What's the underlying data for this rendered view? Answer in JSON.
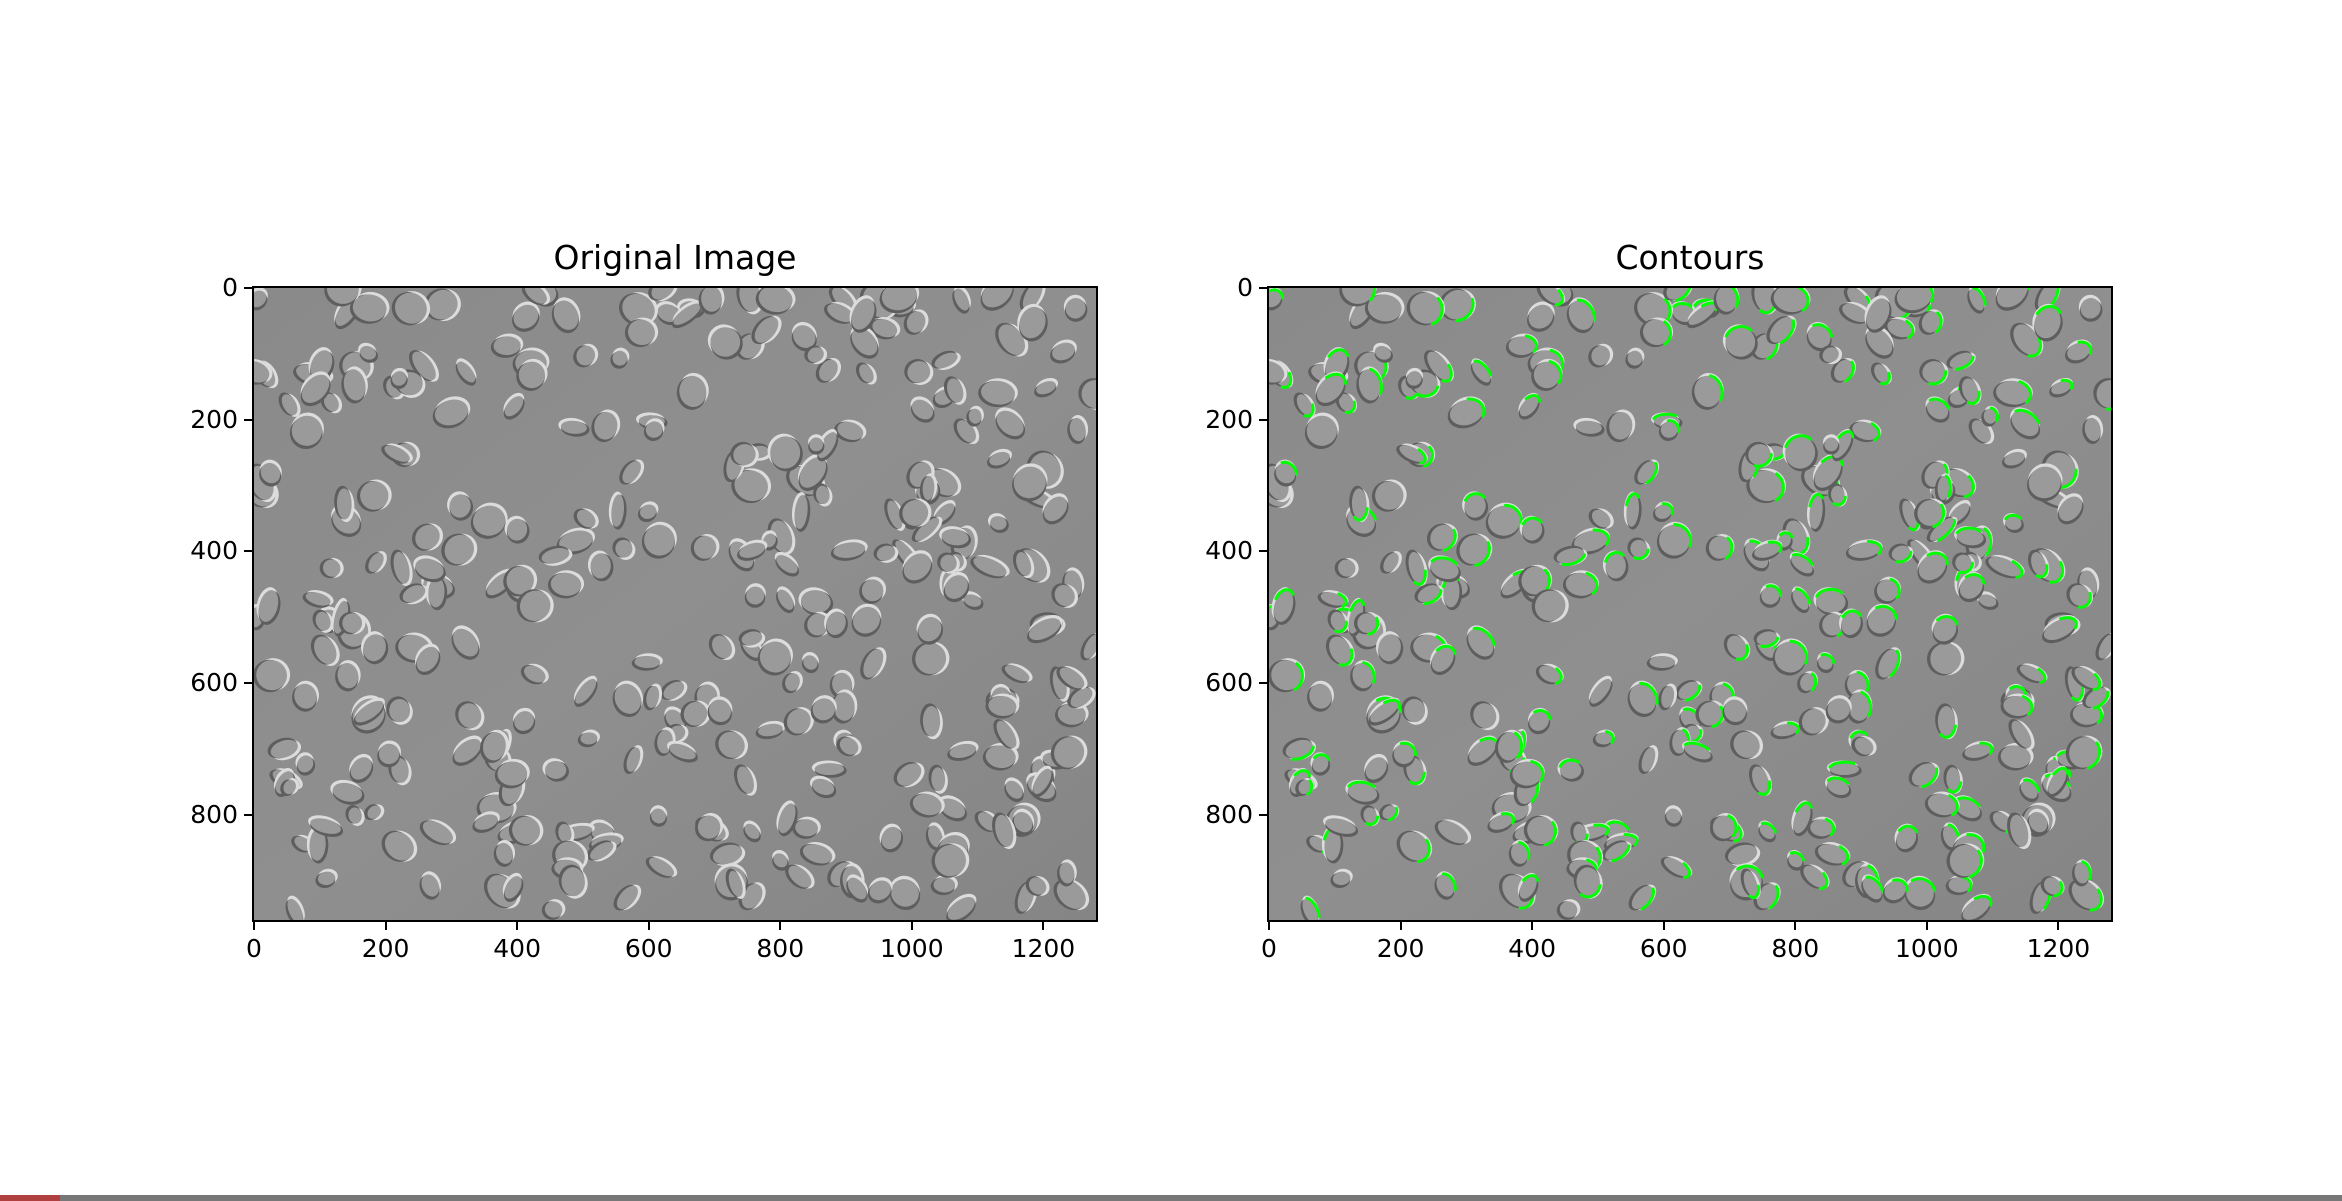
{
  "figure": {
    "panels": [
      {
        "title": "Original Image",
        "image_description_icon": "cell-microscopy-image",
        "show_contours": false,
        "x_ticks": [
          "0",
          "200",
          "400",
          "600",
          "800",
          "1000",
          "1200"
        ],
        "y_ticks": [
          "0",
          "200",
          "400",
          "600",
          "800"
        ]
      },
      {
        "title": "Contours",
        "image_description_icon": "cell-microscopy-image-with-contours",
        "show_contours": true,
        "contour_color": "#00ff00",
        "x_ticks": [
          "0",
          "200",
          "400",
          "600",
          "800",
          "1000",
          "1200"
        ],
        "y_ticks": [
          "0",
          "200",
          "400",
          "600",
          "800"
        ]
      }
    ],
    "axis_range": {
      "x": [
        0,
        1280
      ],
      "y": [
        960,
        0
      ]
    },
    "x_tick_values": [
      0,
      200,
      400,
      600,
      800,
      1000,
      1200
    ],
    "y_tick_values": [
      0,
      200,
      400,
      600,
      800
    ],
    "background_color": "#8c8c8c"
  }
}
